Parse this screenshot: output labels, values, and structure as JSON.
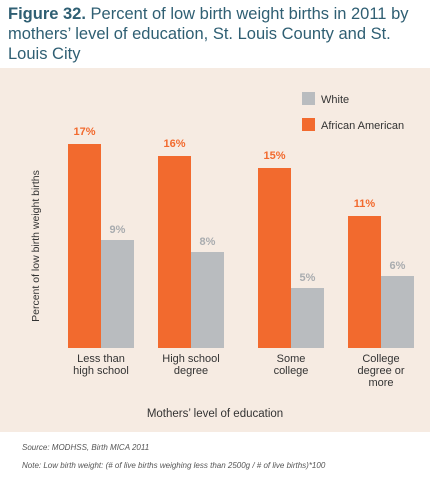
{
  "figure": {
    "number": "Figure 32.",
    "title": "Percent of low birth weight births in 2011 by mothers’ level of education, St. Louis County and St. Louis City",
    "source": "Source: MODHSS, Birth MICA 2011",
    "note": "Note: Low birth weight: (# of live births weighing less than 2500g / # of live births)*100"
  },
  "colors": {
    "white": "#b9bcbf",
    "african_american": "#f26a2e",
    "background": "#f6ebe2",
    "title": "#2f5f73"
  },
  "chart_data": {
    "type": "bar",
    "title": "Percent of low birth weight births in 2011 by mothers’ level of education, St. Louis County and St. Louis City",
    "xlabel": "Mothers’ level of education",
    "ylabel": "Percent of low birth weight births",
    "categories": [
      [
        "Less than",
        "high school"
      ],
      [
        "High school",
        "degree"
      ],
      [
        "Some",
        "college"
      ],
      [
        "College",
        "degree or",
        "more"
      ]
    ],
    "series": [
      {
        "name": "African American",
        "values": [
          17,
          16,
          15,
          11
        ],
        "labels": [
          "17%",
          "16%",
          "15%",
          "11%"
        ]
      },
      {
        "name": "White",
        "values": [
          9,
          8,
          5,
          6
        ],
        "labels": [
          "9%",
          "8%",
          "5%",
          "6%"
        ]
      }
    ],
    "ylim": [
      0,
      18
    ],
    "grid": false,
    "legend": "top-right",
    "legend_order": [
      "White",
      "African American"
    ]
  }
}
